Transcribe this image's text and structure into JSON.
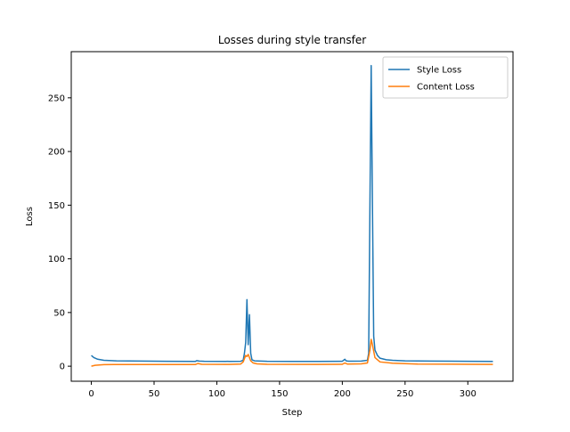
{
  "chart_data": {
    "type": "line",
    "title": "Losses during style transfer",
    "xlabel": "Step",
    "ylabel": "Loss",
    "xlim": [
      -16,
      336
    ],
    "ylim": [
      -14,
      293
    ],
    "xticks": [
      0,
      50,
      100,
      150,
      200,
      250,
      300
    ],
    "yticks": [
      0,
      50,
      100,
      150,
      200,
      250
    ],
    "grid": false,
    "legend_position": "top-right",
    "series": [
      {
        "name": "Style Loss",
        "color": "#1f77b4",
        "points": [
          [
            0,
            10
          ],
          [
            2,
            8
          ],
          [
            5,
            6.5
          ],
          [
            10,
            5.5
          ],
          [
            20,
            5
          ],
          [
            40,
            4.8
          ],
          [
            60,
            4.6
          ],
          [
            83,
            4.5
          ],
          [
            84,
            5.2
          ],
          [
            86,
            4.8
          ],
          [
            90,
            4.6
          ],
          [
            110,
            4.5
          ],
          [
            119,
            4.6
          ],
          [
            121,
            5.5
          ],
          [
            122,
            12
          ],
          [
            123,
            22
          ],
          [
            124,
            62
          ],
          [
            125,
            20
          ],
          [
            126,
            48
          ],
          [
            127,
            12
          ],
          [
            128,
            6
          ],
          [
            130,
            5
          ],
          [
            140,
            4.6
          ],
          [
            160,
            4.5
          ],
          [
            180,
            4.5
          ],
          [
            200,
            4.6
          ],
          [
            202,
            6.5
          ],
          [
            203,
            5
          ],
          [
            205,
            4.7
          ],
          [
            215,
            4.8
          ],
          [
            220,
            5.5
          ],
          [
            221,
            12
          ],
          [
            222,
            150
          ],
          [
            223,
            280
          ],
          [
            224,
            150
          ],
          [
            225,
            28
          ],
          [
            226,
            15
          ],
          [
            228,
            10
          ],
          [
            230,
            7.5
          ],
          [
            235,
            6
          ],
          [
            240,
            5.5
          ],
          [
            250,
            5
          ],
          [
            270,
            4.8
          ],
          [
            300,
            4.6
          ],
          [
            320,
            4.5
          ]
        ]
      },
      {
        "name": "Content Loss",
        "color": "#ff7f0e",
        "points": [
          [
            0,
            0
          ],
          [
            3,
            0.8
          ],
          [
            10,
            1.5
          ],
          [
            30,
            1.6
          ],
          [
            60,
            1.6
          ],
          [
            83,
            1.6
          ],
          [
            85,
            2.5
          ],
          [
            88,
            1.8
          ],
          [
            110,
            1.7
          ],
          [
            119,
            2
          ],
          [
            121,
            4
          ],
          [
            122,
            7
          ],
          [
            123,
            10
          ],
          [
            124,
            9
          ],
          [
            125,
            11
          ],
          [
            126,
            8
          ],
          [
            127,
            5
          ],
          [
            129,
            3
          ],
          [
            132,
            2.2
          ],
          [
            140,
            1.8
          ],
          [
            180,
            1.7
          ],
          [
            200,
            1.8
          ],
          [
            202,
            3
          ],
          [
            204,
            2
          ],
          [
            215,
            2.2
          ],
          [
            220,
            3
          ],
          [
            222,
            15
          ],
          [
            223,
            25
          ],
          [
            224,
            20
          ],
          [
            226,
            8
          ],
          [
            230,
            4
          ],
          [
            240,
            2.8
          ],
          [
            260,
            2
          ],
          [
            300,
            1.8
          ],
          [
            320,
            1.7
          ]
        ]
      }
    ]
  }
}
